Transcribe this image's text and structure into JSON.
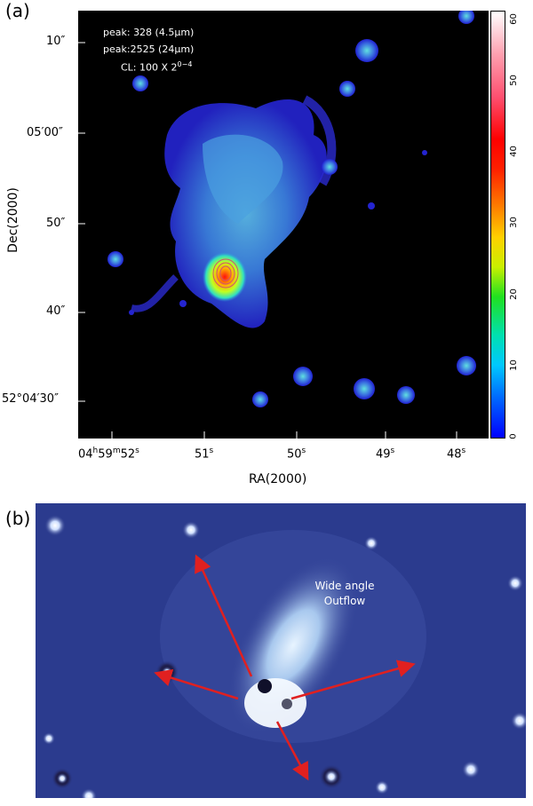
{
  "panel_a": {
    "label": "(a)",
    "annotations": [
      "peak: 328 (4.5μm)",
      "peak:2525 (24μm)"
    ],
    "cl_prefix": "CL: 100 X 2",
    "cl_sup": "0−4",
    "y_axis_label": "Dec(2000)",
    "x_axis_label": "RA(2000)",
    "y_ticks": [
      "10″",
      "05′00″",
      "50″",
      "40″",
      "52°04′30″"
    ],
    "x_ticks": [
      {
        "main": "04",
        "sup1": "h",
        "mid": "59",
        "sup2": "m",
        "end": "52",
        "sup3": "s"
      },
      {
        "main": "51",
        "sup3": "s"
      },
      {
        "main": "50",
        "sup3": "s"
      },
      {
        "main": "49",
        "sup3": "s"
      },
      {
        "main": "48",
        "sup3": "s"
      }
    ],
    "colorbar_ticks": [
      "0",
      "10",
      "20",
      "30",
      "40",
      "50",
      "60"
    ],
    "colors": {
      "background": "#000000",
      "low": "#2020d0",
      "mid": "#4a9ee0",
      "peak": "#ff2020"
    }
  },
  "panel_b": {
    "label": "(b)",
    "overlay_line1": "Wide angle",
    "overlay_line2": "Outflow",
    "colors": {
      "background": "#2a3a8c",
      "arrow": "#e02020",
      "nebula": "#cfe3f5"
    }
  }
}
